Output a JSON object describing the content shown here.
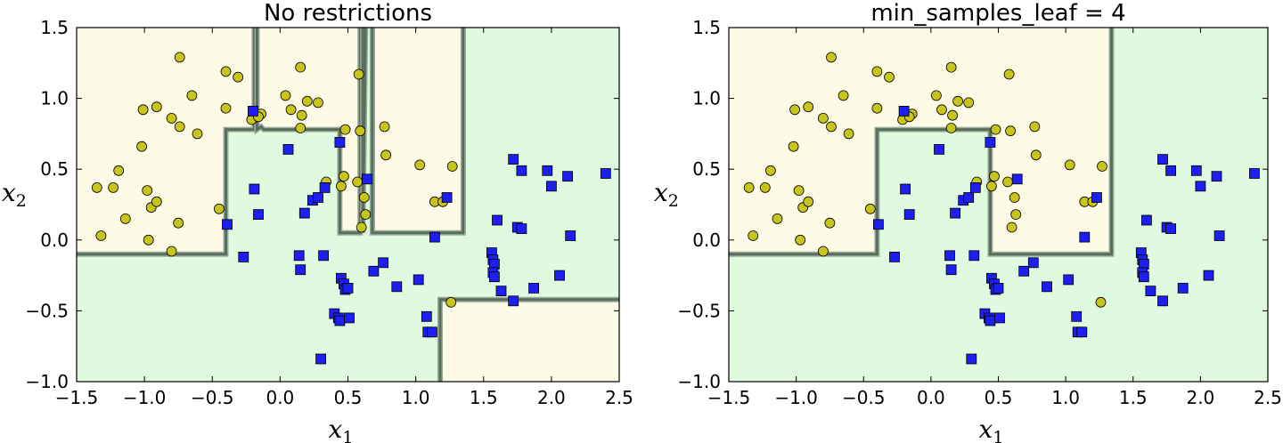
{
  "colors": {
    "region_class0": "#fdfae6",
    "region_class1": "#e0fae0",
    "boundary": "#5a6e5e",
    "boundary_edge": "#9aaa9a",
    "class0_marker": "#c8c41e",
    "class1_marker": "#1d1ef0"
  },
  "chart_data": [
    {
      "type": "scatter",
      "title": "No restrictions",
      "xlabel": "x",
      "xlabel_sub": "1",
      "ylabel": "x",
      "ylabel_sub": "2",
      "xlim": [
        -1.5,
        2.5
      ],
      "ylim": [
        -1.0,
        1.5
      ],
      "xticks": [
        -1.5,
        -1.0,
        -0.5,
        0.0,
        0.5,
        1.0,
        1.5,
        2.0,
        2.5
      ],
      "yticks": [
        -1.0,
        -0.5,
        0.0,
        0.5,
        1.0,
        1.5
      ],
      "xtick_labels": [
        "−1.5",
        "−1.0",
        "−0.5",
        "0.0",
        "0.5",
        "1.0",
        "1.5",
        "2.0",
        "2.5"
      ],
      "ytick_labels": [
        "−1.0",
        "−0.5",
        "0.0",
        "0.5",
        "1.0",
        "1.5"
      ],
      "grid": false,
      "class0_regions": [
        [
          [
            -1.5,
            -0.1
          ],
          [
            -0.4,
            -0.1
          ],
          [
            -0.4,
            0.78
          ],
          [
            -0.19,
            0.78
          ],
          [
            -0.19,
            1.5
          ],
          [
            -1.5,
            1.5
          ]
        ],
        [
          [
            -0.19,
            0.78
          ],
          [
            -0.15,
            0.8
          ],
          [
            -0.12,
            0.78
          ],
          [
            0.44,
            0.78
          ],
          [
            0.44,
            0.05
          ],
          [
            0.59,
            0.05
          ],
          [
            0.59,
            0.78
          ],
          [
            0.59,
            1.5
          ],
          [
            -0.19,
            1.5
          ]
        ],
        [
          [
            0.68,
            1.5
          ],
          [
            0.68,
            0.05
          ],
          [
            1.35,
            0.05
          ],
          [
            1.35,
            1.5
          ]
        ],
        [
          [
            1.18,
            -1.0
          ],
          [
            1.18,
            -0.42
          ],
          [
            2.5,
            -0.42
          ],
          [
            2.5,
            -1.0
          ]
        ]
      ],
      "boundaries": [
        [
          [
            -1.5,
            -0.1
          ],
          [
            -0.4,
            -0.1
          ],
          [
            -0.4,
            0.78
          ],
          [
            -0.19,
            0.78
          ],
          [
            -0.19,
            1.5
          ]
        ],
        [
          [
            -0.17,
            1.5
          ],
          [
            -0.17,
            0.78
          ],
          [
            -0.14,
            0.8
          ],
          [
            -0.12,
            0.78
          ],
          [
            0.44,
            0.78
          ],
          [
            0.44,
            0.05
          ],
          [
            0.59,
            0.05
          ],
          [
            0.59,
            1.5
          ]
        ],
        [
          [
            0.61,
            1.5
          ],
          [
            0.61,
            0.05
          ],
          [
            0.63,
            1.5
          ]
        ],
        [
          [
            0.68,
            1.5
          ],
          [
            0.68,
            0.05
          ],
          [
            1.35,
            0.05
          ],
          [
            1.35,
            1.5
          ]
        ],
        [
          [
            1.18,
            -1.0
          ],
          [
            1.18,
            -0.42
          ],
          [
            2.5,
            -0.42
          ]
        ]
      ],
      "class0_points": [
        [
          -1.35,
          0.37
        ],
        [
          -1.32,
          0.03
        ],
        [
          -1.23,
          0.37
        ],
        [
          -1.19,
          0.49
        ],
        [
          -1.14,
          0.15
        ],
        [
          -1.02,
          0.66
        ],
        [
          -1.01,
          0.92
        ],
        [
          -0.98,
          0.35
        ],
        [
          -0.97,
          0.0
        ],
        [
          -0.95,
          0.23
        ],
        [
          -0.91,
          0.27
        ],
        [
          -0.91,
          0.94
        ],
        [
          -0.8,
          0.86
        ],
        [
          -0.8,
          -0.08
        ],
        [
          -0.75,
          0.12
        ],
        [
          -0.74,
          1.29
        ],
        [
          -0.74,
          0.8
        ],
        [
          -0.65,
          1.02
        ],
        [
          -0.61,
          0.75
        ],
        [
          -0.45,
          0.22
        ],
        [
          -0.4,
          0.93
        ],
        [
          -0.4,
          1.19
        ],
        [
          -0.31,
          1.15
        ],
        [
          -0.21,
          0.85
        ],
        [
          -0.14,
          0.89
        ],
        [
          -0.16,
          0.87
        ],
        [
          0.04,
          1.02
        ],
        [
          0.08,
          0.92
        ],
        [
          0.15,
          0.79
        ],
        [
          0.16,
          0.88
        ],
        [
          0.15,
          1.22
        ],
        [
          0.2,
          0.98
        ],
        [
          0.28,
          0.97
        ],
        [
          0.34,
          0.41
        ],
        [
          0.45,
          0.38
        ],
        [
          0.47,
          0.45
        ],
        [
          0.48,
          0.78
        ],
        [
          0.57,
          0.41
        ],
        [
          0.58,
          1.17
        ],
        [
          0.59,
          0.77
        ],
        [
          0.6,
          0.09
        ],
        [
          0.62,
          0.3
        ],
        [
          0.63,
          0.18
        ],
        [
          0.77,
          0.8
        ],
        [
          0.78,
          0.6
        ],
        [
          1.03,
          0.53
        ],
        [
          1.14,
          0.27
        ],
        [
          1.2,
          0.27
        ],
        [
          1.27,
          0.52
        ],
        [
          1.26,
          -0.44
        ]
      ],
      "class1_points": [
        [
          -0.39,
          0.11
        ],
        [
          -0.27,
          -0.12
        ],
        [
          -0.2,
          0.91
        ],
        [
          -0.19,
          0.36
        ],
        [
          -0.16,
          0.18
        ],
        [
          0.06,
          0.64
        ],
        [
          0.14,
          -0.11
        ],
        [
          0.15,
          -0.21
        ],
        [
          0.18,
          0.19
        ],
        [
          0.24,
          0.28
        ],
        [
          0.28,
          0.3
        ],
        [
          0.32,
          -0.11
        ],
        [
          0.33,
          0.37
        ],
        [
          0.3,
          -0.84
        ],
        [
          0.4,
          -0.52
        ],
        [
          0.43,
          -0.55
        ],
        [
          0.44,
          -0.57
        ],
        [
          0.44,
          0.69
        ],
        [
          0.45,
          -0.27
        ],
        [
          0.47,
          -0.31
        ],
        [
          0.48,
          -0.35
        ],
        [
          0.5,
          -0.34
        ],
        [
          0.51,
          -0.55
        ],
        [
          0.64,
          0.43
        ],
        [
          0.69,
          -0.22
        ],
        [
          0.76,
          -0.16
        ],
        [
          0.86,
          -0.33
        ],
        [
          1.02,
          -0.28
        ],
        [
          1.08,
          -0.54
        ],
        [
          1.09,
          -0.65
        ],
        [
          1.12,
          -0.65
        ],
        [
          1.14,
          0.02
        ],
        [
          1.23,
          0.3
        ],
        [
          1.56,
          -0.09
        ],
        [
          1.57,
          -0.14
        ],
        [
          1.58,
          -0.17
        ],
        [
          1.6,
          0.14
        ],
        [
          1.63,
          -0.36
        ],
        [
          1.72,
          0.57
        ],
        [
          1.72,
          -0.43
        ],
        [
          1.75,
          0.09
        ],
        [
          1.78,
          0.49
        ],
        [
          1.78,
          0.08
        ],
        [
          1.87,
          -0.34
        ],
        [
          1.97,
          0.49
        ],
        [
          2.0,
          0.38
        ],
        [
          2.06,
          -0.25
        ],
        [
          2.12,
          0.45
        ],
        [
          2.14,
          0.03
        ],
        [
          2.4,
          0.47
        ],
        [
          1.57,
          -0.23
        ],
        [
          1.58,
          -0.26
        ]
      ]
    },
    {
      "type": "scatter",
      "title": "min_samples_leaf = 4",
      "xlabel": "x",
      "xlabel_sub": "1",
      "ylabel": "x",
      "ylabel_sub": "2",
      "xlim": [
        -1.5,
        2.5
      ],
      "ylim": [
        -1.0,
        1.5
      ],
      "xticks": [
        -1.5,
        -1.0,
        -0.5,
        0.0,
        0.5,
        1.0,
        1.5,
        2.0,
        2.5
      ],
      "yticks": [
        -1.0,
        -0.5,
        0.0,
        0.5,
        1.0,
        1.5
      ],
      "xtick_labels": [
        "−1.5",
        "−1.0",
        "−0.5",
        "0.0",
        "0.5",
        "1.0",
        "1.5",
        "2.0",
        "2.5"
      ],
      "ytick_labels": [
        "−1.0",
        "−0.5",
        "0.0",
        "0.5",
        "1.0",
        "1.5"
      ],
      "grid": false,
      "class0_regions": [
        [
          [
            -1.5,
            -0.1
          ],
          [
            -0.4,
            -0.1
          ],
          [
            -0.4,
            0.78
          ],
          [
            0.44,
            0.78
          ],
          [
            0.44,
            -0.1
          ],
          [
            1.34,
            -0.1
          ],
          [
            1.34,
            1.5
          ],
          [
            -1.5,
            1.5
          ]
        ]
      ],
      "boundaries": [
        [
          [
            -1.5,
            -0.1
          ],
          [
            -0.4,
            -0.1
          ],
          [
            -0.4,
            0.78
          ],
          [
            0.44,
            0.78
          ],
          [
            0.44,
            -0.1
          ],
          [
            1.34,
            -0.1
          ],
          [
            1.34,
            1.5
          ]
        ]
      ],
      "class0_points": [
        [
          -1.35,
          0.37
        ],
        [
          -1.32,
          0.03
        ],
        [
          -1.23,
          0.37
        ],
        [
          -1.19,
          0.49
        ],
        [
          -1.14,
          0.15
        ],
        [
          -1.02,
          0.66
        ],
        [
          -1.01,
          0.92
        ],
        [
          -0.98,
          0.35
        ],
        [
          -0.97,
          0.0
        ],
        [
          -0.95,
          0.23
        ],
        [
          -0.91,
          0.27
        ],
        [
          -0.91,
          0.94
        ],
        [
          -0.8,
          0.86
        ],
        [
          -0.8,
          -0.08
        ],
        [
          -0.75,
          0.12
        ],
        [
          -0.74,
          1.29
        ],
        [
          -0.74,
          0.8
        ],
        [
          -0.65,
          1.02
        ],
        [
          -0.61,
          0.75
        ],
        [
          -0.45,
          0.22
        ],
        [
          -0.4,
          0.93
        ],
        [
          -0.4,
          1.19
        ],
        [
          -0.31,
          1.15
        ],
        [
          -0.21,
          0.85
        ],
        [
          -0.14,
          0.89
        ],
        [
          -0.16,
          0.87
        ],
        [
          0.04,
          1.02
        ],
        [
          0.08,
          0.92
        ],
        [
          0.15,
          0.79
        ],
        [
          0.16,
          0.88
        ],
        [
          0.15,
          1.22
        ],
        [
          0.2,
          0.98
        ],
        [
          0.28,
          0.97
        ],
        [
          0.34,
          0.41
        ],
        [
          0.45,
          0.38
        ],
        [
          0.47,
          0.45
        ],
        [
          0.48,
          0.78
        ],
        [
          0.57,
          0.41
        ],
        [
          0.58,
          1.17
        ],
        [
          0.59,
          0.77
        ],
        [
          0.6,
          0.09
        ],
        [
          0.62,
          0.3
        ],
        [
          0.63,
          0.18
        ],
        [
          0.77,
          0.8
        ],
        [
          0.78,
          0.6
        ],
        [
          1.03,
          0.53
        ],
        [
          1.14,
          0.27
        ],
        [
          1.2,
          0.27
        ],
        [
          1.27,
          0.52
        ],
        [
          1.26,
          -0.44
        ]
      ],
      "class1_points": [
        [
          -0.39,
          0.11
        ],
        [
          -0.27,
          -0.12
        ],
        [
          -0.2,
          0.91
        ],
        [
          -0.19,
          0.36
        ],
        [
          -0.16,
          0.18
        ],
        [
          0.06,
          0.64
        ],
        [
          0.14,
          -0.11
        ],
        [
          0.15,
          -0.21
        ],
        [
          0.18,
          0.19
        ],
        [
          0.24,
          0.28
        ],
        [
          0.28,
          0.3
        ],
        [
          0.32,
          -0.11
        ],
        [
          0.33,
          0.37
        ],
        [
          0.3,
          -0.84
        ],
        [
          0.4,
          -0.52
        ],
        [
          0.43,
          -0.55
        ],
        [
          0.44,
          -0.57
        ],
        [
          0.44,
          0.69
        ],
        [
          0.45,
          -0.27
        ],
        [
          0.47,
          -0.31
        ],
        [
          0.48,
          -0.35
        ],
        [
          0.5,
          -0.34
        ],
        [
          0.51,
          -0.55
        ],
        [
          0.64,
          0.43
        ],
        [
          0.69,
          -0.22
        ],
        [
          0.76,
          -0.16
        ],
        [
          0.86,
          -0.33
        ],
        [
          1.02,
          -0.28
        ],
        [
          1.08,
          -0.54
        ],
        [
          1.09,
          -0.65
        ],
        [
          1.12,
          -0.65
        ],
        [
          1.14,
          0.02
        ],
        [
          1.23,
          0.3
        ],
        [
          1.56,
          -0.09
        ],
        [
          1.57,
          -0.14
        ],
        [
          1.58,
          -0.17
        ],
        [
          1.6,
          0.14
        ],
        [
          1.63,
          -0.36
        ],
        [
          1.72,
          0.57
        ],
        [
          1.72,
          -0.43
        ],
        [
          1.75,
          0.09
        ],
        [
          1.78,
          0.49
        ],
        [
          1.78,
          0.08
        ],
        [
          1.87,
          -0.34
        ],
        [
          1.97,
          0.49
        ],
        [
          2.0,
          0.38
        ],
        [
          2.06,
          -0.25
        ],
        [
          2.12,
          0.45
        ],
        [
          2.14,
          0.03
        ],
        [
          2.4,
          0.47
        ],
        [
          1.57,
          -0.23
        ],
        [
          1.58,
          -0.26
        ]
      ]
    }
  ]
}
